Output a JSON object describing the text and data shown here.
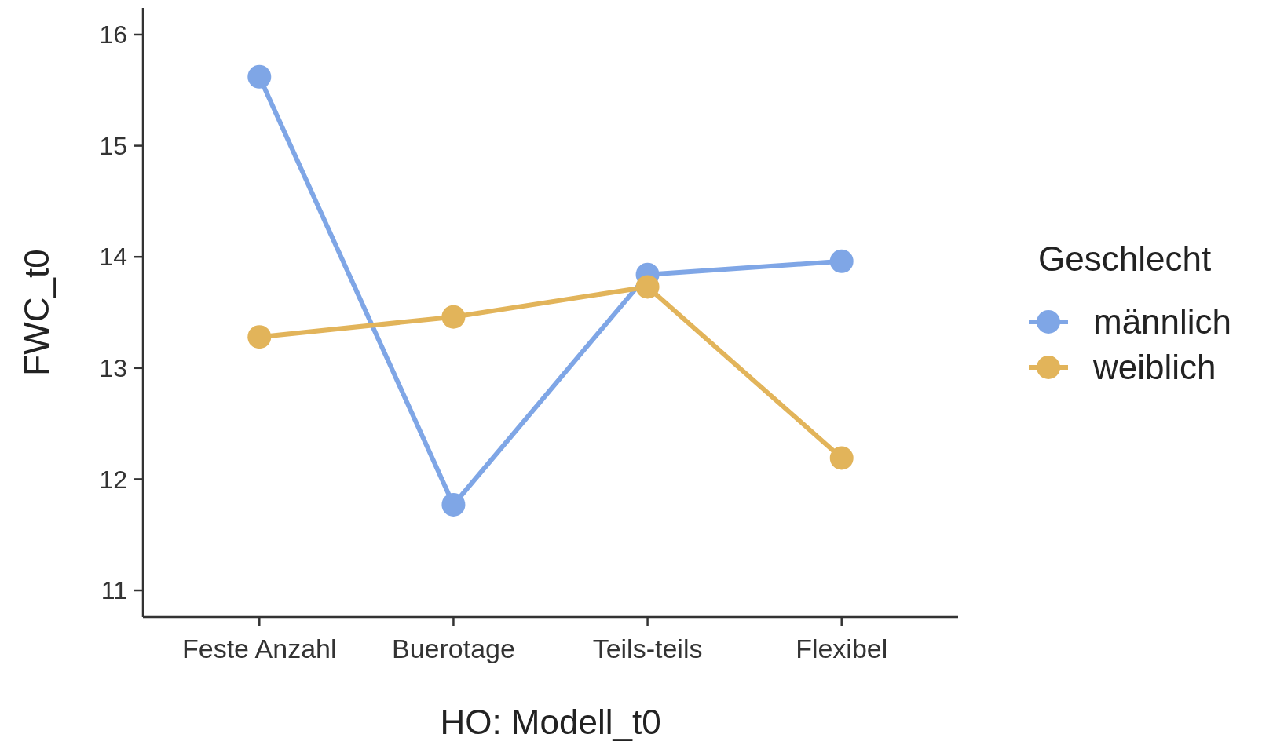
{
  "chart_data": {
    "type": "line",
    "xlabel": "HO: Modell_t0",
    "ylabel": "FWC_t0",
    "legend_title": "Geschlecht",
    "legend": "right",
    "marker": "circle",
    "grid": false,
    "categories": [
      "Feste Anzahl",
      "Buerotage",
      "Teils-teils",
      "Flexibel"
    ],
    "ylim": [
      10.76,
      16.24
    ],
    "yticks": [
      11,
      12,
      13,
      14,
      15,
      16
    ],
    "series": [
      {
        "name": "männlich",
        "color": "#7fa6e6",
        "values": [
          15.62,
          11.77,
          13.84,
          13.96
        ]
      },
      {
        "name": "weiblich",
        "color": "#e2b45a",
        "values": [
          13.28,
          13.46,
          13.73,
          12.19
        ]
      }
    ]
  }
}
